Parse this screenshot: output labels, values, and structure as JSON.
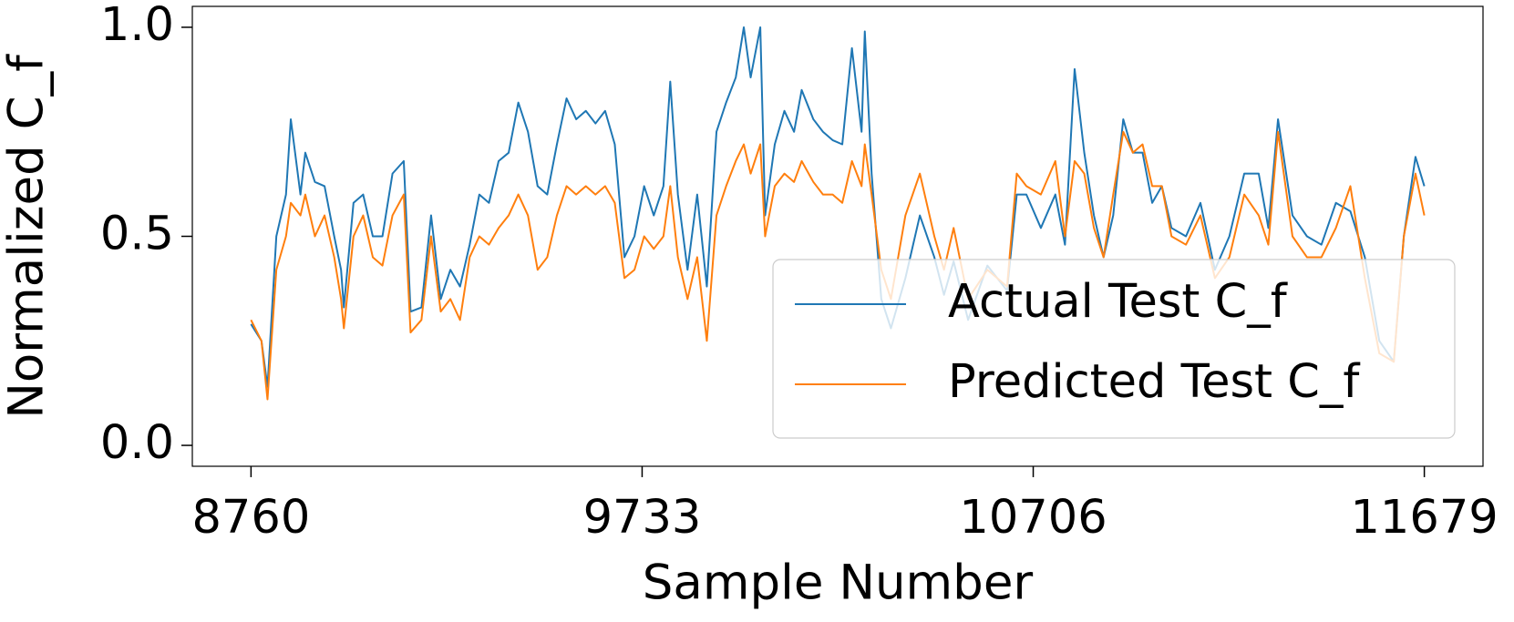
{
  "chart_data": {
    "type": "line",
    "x_label": "Sample Number",
    "y_label": "Normalized C_f",
    "x": [
      8760,
      8786,
      8801,
      8823,
      8847,
      8859,
      8883,
      8895,
      8919,
      8943,
      8967,
      8984,
      8991,
      9015,
      9039,
      9063,
      9087,
      9112,
      9140,
      9157,
      9184,
      9208,
      9232,
      9256,
      9280,
      9304,
      9328,
      9352,
      9376,
      9401,
      9425,
      9449,
      9473,
      9497,
      9521,
      9545,
      9569,
      9593,
      9617,
      9641,
      9665,
      9689,
      9714,
      9738,
      9762,
      9786,
      9803,
      9822,
      9846,
      9870,
      9894,
      9918,
      9942,
      9966,
      9986,
      10003,
      10027,
      10039,
      10063,
      10087,
      10111,
      10130,
      10159,
      10183,
      10207,
      10231,
      10255,
      10279,
      10287,
      10304,
      10328,
      10352,
      10388,
      10424,
      10460,
      10484,
      10508,
      10544,
      10592,
      10641,
      10665,
      10689,
      10725,
      10761,
      10785,
      10809,
      10833,
      10857,
      10881,
      10905,
      10930,
      10954,
      10978,
      11002,
      11026,
      11050,
      11086,
      11122,
      11158,
      11194,
      11231,
      11267,
      11291,
      11315,
      11351,
      11387,
      11423,
      11459,
      11495,
      11531,
      11567,
      11603,
      11628,
      11657,
      11679
    ],
    "series": [
      {
        "name": "Actual Test C_f",
        "color": "#1f77b4",
        "values": [
          0.29,
          0.25,
          0.14,
          0.5,
          0.6,
          0.78,
          0.6,
          0.7,
          0.63,
          0.62,
          0.5,
          0.42,
          0.33,
          0.58,
          0.6,
          0.5,
          0.5,
          0.65,
          0.68,
          0.32,
          0.33,
          0.55,
          0.35,
          0.42,
          0.38,
          0.48,
          0.6,
          0.58,
          0.68,
          0.7,
          0.82,
          0.75,
          0.62,
          0.6,
          0.72,
          0.83,
          0.78,
          0.8,
          0.77,
          0.8,
          0.72,
          0.45,
          0.5,
          0.62,
          0.55,
          0.62,
          0.87,
          0.6,
          0.42,
          0.6,
          0.38,
          0.75,
          0.82,
          0.88,
          1.0,
          0.88,
          1.0,
          0.55,
          0.72,
          0.8,
          0.75,
          0.85,
          0.78,
          0.75,
          0.73,
          0.72,
          0.95,
          0.75,
          0.99,
          0.65,
          0.35,
          0.28,
          0.4,
          0.55,
          0.45,
          0.36,
          0.44,
          0.3,
          0.43,
          0.37,
          0.6,
          0.6,
          0.52,
          0.6,
          0.48,
          0.9,
          0.7,
          0.55,
          0.45,
          0.55,
          0.78,
          0.7,
          0.7,
          0.58,
          0.62,
          0.52,
          0.5,
          0.58,
          0.42,
          0.5,
          0.65,
          0.65,
          0.52,
          0.78,
          0.55,
          0.5,
          0.48,
          0.58,
          0.56,
          0.45,
          0.25,
          0.2,
          0.5,
          0.69,
          0.62
        ]
      },
      {
        "name": "Predicted Test C_f",
        "color": "#ff7f0e",
        "values": [
          0.3,
          0.25,
          0.11,
          0.42,
          0.5,
          0.58,
          0.55,
          0.6,
          0.5,
          0.55,
          0.45,
          0.35,
          0.28,
          0.5,
          0.55,
          0.45,
          0.43,
          0.55,
          0.6,
          0.27,
          0.3,
          0.5,
          0.32,
          0.35,
          0.3,
          0.45,
          0.5,
          0.48,
          0.52,
          0.55,
          0.6,
          0.55,
          0.42,
          0.45,
          0.55,
          0.62,
          0.6,
          0.62,
          0.6,
          0.62,
          0.58,
          0.4,
          0.42,
          0.5,
          0.47,
          0.5,
          0.62,
          0.45,
          0.35,
          0.45,
          0.25,
          0.55,
          0.62,
          0.68,
          0.72,
          0.65,
          0.72,
          0.5,
          0.62,
          0.65,
          0.63,
          0.68,
          0.63,
          0.6,
          0.6,
          0.58,
          0.68,
          0.62,
          0.72,
          0.6,
          0.42,
          0.35,
          0.55,
          0.65,
          0.5,
          0.42,
          0.52,
          0.35,
          0.42,
          0.38,
          0.65,
          0.62,
          0.6,
          0.68,
          0.5,
          0.68,
          0.65,
          0.52,
          0.45,
          0.6,
          0.75,
          0.7,
          0.72,
          0.62,
          0.62,
          0.5,
          0.48,
          0.55,
          0.4,
          0.45,
          0.6,
          0.55,
          0.48,
          0.75,
          0.5,
          0.45,
          0.45,
          0.52,
          0.62,
          0.4,
          0.22,
          0.2,
          0.5,
          0.65,
          0.55
        ]
      }
    ],
    "xlim": [
      8614,
      11825
    ],
    "ylim": [
      -0.05,
      1.05
    ],
    "xticks": [
      8760,
      9733,
      10706,
      11679
    ],
    "yticks": [
      {
        "value": 0,
        "label": "0.0"
      },
      {
        "value": 0.5,
        "label": "0.5"
      },
      {
        "value": 1,
        "label": "1.0"
      }
    ],
    "grid": false,
    "legend_loc": "lower right"
  }
}
